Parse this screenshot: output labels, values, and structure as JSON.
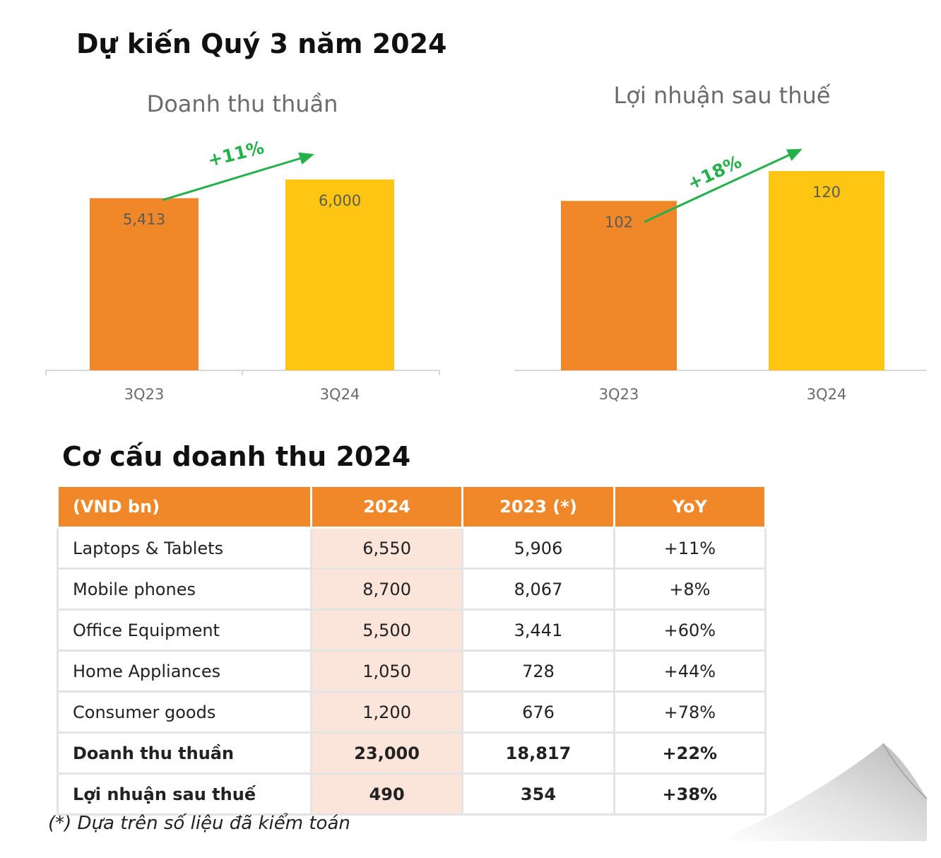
{
  "heading": "Dự kiến Quý 3 năm 2024",
  "chart_data": [
    {
      "type": "bar",
      "title": "Doanh thu thuần",
      "categories": [
        "3Q23",
        "3Q24"
      ],
      "values": [
        5413,
        6000
      ],
      "value_labels": [
        "5,413",
        "6,000"
      ],
      "colors": [
        "#f0882a",
        "#fec512"
      ],
      "growth_label": "+11%",
      "grid": false
    },
    {
      "type": "bar",
      "title": "Lợi nhuận sau thuế",
      "categories": [
        "3Q23",
        "3Q24"
      ],
      "values": [
        102,
        120
      ],
      "value_labels": [
        "102",
        "120"
      ],
      "colors": [
        "#f0882a",
        "#fec512"
      ],
      "growth_label": "+18%",
      "grid": false
    },
    {
      "type": "table",
      "title": "Cơ cấu doanh thu 2024",
      "columns": [
        "(VND bn)",
        "2024",
        "2023 (*)",
        "YoY"
      ],
      "rows": [
        [
          "Laptops & Tablets",
          "6,550",
          "5,906",
          "+11%"
        ],
        [
          "Mobile phones",
          "8,700",
          "8,067",
          "+8%"
        ],
        [
          "Office Equipment",
          "5,500",
          "3,441",
          "+60%"
        ],
        [
          "Home Appliances",
          "1,050",
          "728",
          "+44%"
        ],
        [
          "Consumer goods",
          "1,200",
          "676",
          "+78%"
        ],
        [
          "Doanh thu thuần",
          "23,000",
          "18,817",
          "+22%"
        ],
        [
          "Lợi nhuận sau thuế",
          "490",
          "354",
          "+38%"
        ]
      ],
      "bold_rows": [
        5,
        6
      ],
      "highlight_color": "#fbe4d9",
      "header_color": "#f0882a"
    }
  ],
  "footnote": "(*) Dựa trên số liệu đã kiểm toán"
}
